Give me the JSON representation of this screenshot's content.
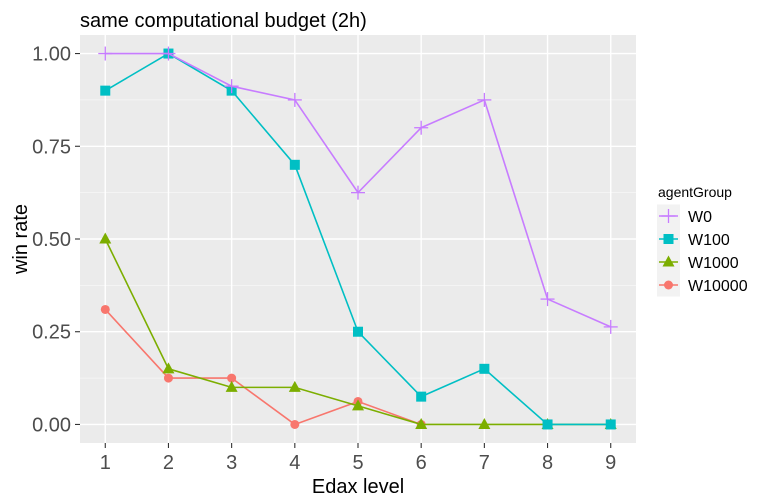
{
  "chart_data": {
    "type": "line",
    "title": "same computational budget (2h)",
    "xlabel": "Edax level",
    "ylabel": "win rate",
    "x": [
      1,
      2,
      3,
      4,
      5,
      6,
      7,
      8,
      9
    ],
    "xlim": [
      0.6,
      9.4
    ],
    "ylim": [
      -0.05,
      1.05
    ],
    "yticks": [
      "0.00",
      "0.25",
      "0.50",
      "0.75",
      "1.00"
    ],
    "ytick_values": [
      0,
      0.25,
      0.5,
      0.75,
      1.0
    ],
    "grid": true,
    "legend": {
      "title": "agentGroup",
      "position": "right"
    },
    "series": [
      {
        "name": "W0",
        "color": "#c77cff",
        "marker": "plus",
        "x": [
          1,
          2,
          3,
          4,
          5,
          6,
          7,
          8,
          9
        ],
        "values": [
          1.0,
          1.0,
          0.912,
          0.875,
          0.625,
          0.8,
          0.875,
          0.338,
          0.263
        ]
      },
      {
        "name": "W100",
        "color": "#00bfc4",
        "marker": "square",
        "x": [
          1,
          2,
          3,
          4,
          5,
          6,
          7,
          8,
          9
        ],
        "values": [
          0.9,
          1.0,
          0.9,
          0.7,
          0.25,
          0.075,
          0.15,
          0.0,
          0.0
        ]
      },
      {
        "name": "W1000",
        "color": "#7cae00",
        "marker": "triangle",
        "x": [
          1,
          2,
          3,
          4,
          5,
          6,
          7,
          8,
          9
        ],
        "values": [
          0.5,
          0.15,
          0.1,
          0.1,
          0.05,
          0.0,
          0.0,
          0.0,
          0.0
        ]
      },
      {
        "name": "W10000",
        "color": "#f8766d",
        "marker": "circle",
        "x": [
          1,
          2,
          3,
          4,
          5,
          6
        ],
        "values": [
          0.31,
          0.125,
          0.125,
          0.0,
          0.062,
          0.0
        ]
      }
    ]
  }
}
